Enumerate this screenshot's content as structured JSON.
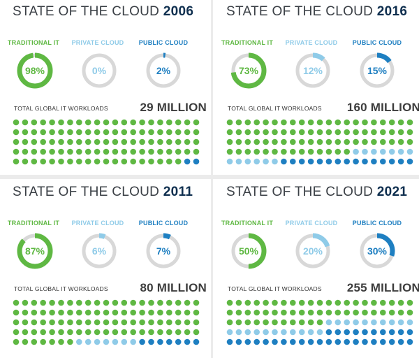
{
  "colors": {
    "traditional": "#5fb843",
    "private": "#8fcbe8",
    "public": "#1e7fc1",
    "track": "#d8d8d8",
    "title": "#3a3f45",
    "year": "#0f2f4f"
  },
  "labels": {
    "traditional": "TRADITIONAL IT",
    "private": "PRIVATE CLOUD",
    "public": "PUBLIC CLOUD",
    "workloads": "TOTAL GLOBAL IT WORKLOADS",
    "title_prefix": "STATE OF THE CLOUD"
  },
  "chart_data": [
    {
      "type": "donut",
      "title": "STATE OF THE CLOUD 2006",
      "year": "2006",
      "series": [
        {
          "name": "TRADITIONAL IT",
          "value": 98,
          "label": "98%"
        },
        {
          "name": "PRIVATE CLOUD",
          "value": 0,
          "label": "0%"
        },
        {
          "name": "PUBLIC CLOUD",
          "value": 2,
          "label": "2%"
        }
      ],
      "workloads": "29 MILLION",
      "dots": {
        "traditional": 103,
        "private": 0,
        "public": 2,
        "total": 105
      }
    },
    {
      "type": "donut",
      "title": "STATE OF THE CLOUD 2016",
      "year": "2016",
      "series": [
        {
          "name": "TRADITIONAL IT",
          "value": 73,
          "label": "73%"
        },
        {
          "name": "PRIVATE CLOUD",
          "value": 12,
          "label": "12%"
        },
        {
          "name": "PUBLIC CLOUD",
          "value": 15,
          "label": "15%"
        }
      ],
      "workloads": "160 MILLION",
      "dots": {
        "traditional": 77,
        "private": 13,
        "public": 15,
        "total": 105
      }
    },
    {
      "type": "donut",
      "title": "STATE OF THE CLOUD 2011",
      "year": "2011",
      "series": [
        {
          "name": "TRADITIONAL IT",
          "value": 87,
          "label": "87%"
        },
        {
          "name": "PRIVATE CLOUD",
          "value": 6,
          "label": "6%"
        },
        {
          "name": "PUBLIC CLOUD",
          "value": 7,
          "label": "7%"
        }
      ],
      "workloads": "80 MILLION",
      "dots": {
        "traditional": 91,
        "private": 7,
        "public": 7,
        "total": 105
      }
    },
    {
      "type": "donut",
      "title": "STATE OF THE CLOUD 2021",
      "year": "2021",
      "series": [
        {
          "name": "TRADITIONAL IT",
          "value": 50,
          "label": "50%"
        },
        {
          "name": "PRIVATE CLOUD",
          "value": 20,
          "label": "20%"
        },
        {
          "name": "PUBLIC CLOUD",
          "value": 30,
          "label": "30%"
        }
      ],
      "workloads": "255 MILLION",
      "dots": {
        "traditional": 53,
        "private": 21,
        "public": 31,
        "total": 105
      }
    }
  ]
}
